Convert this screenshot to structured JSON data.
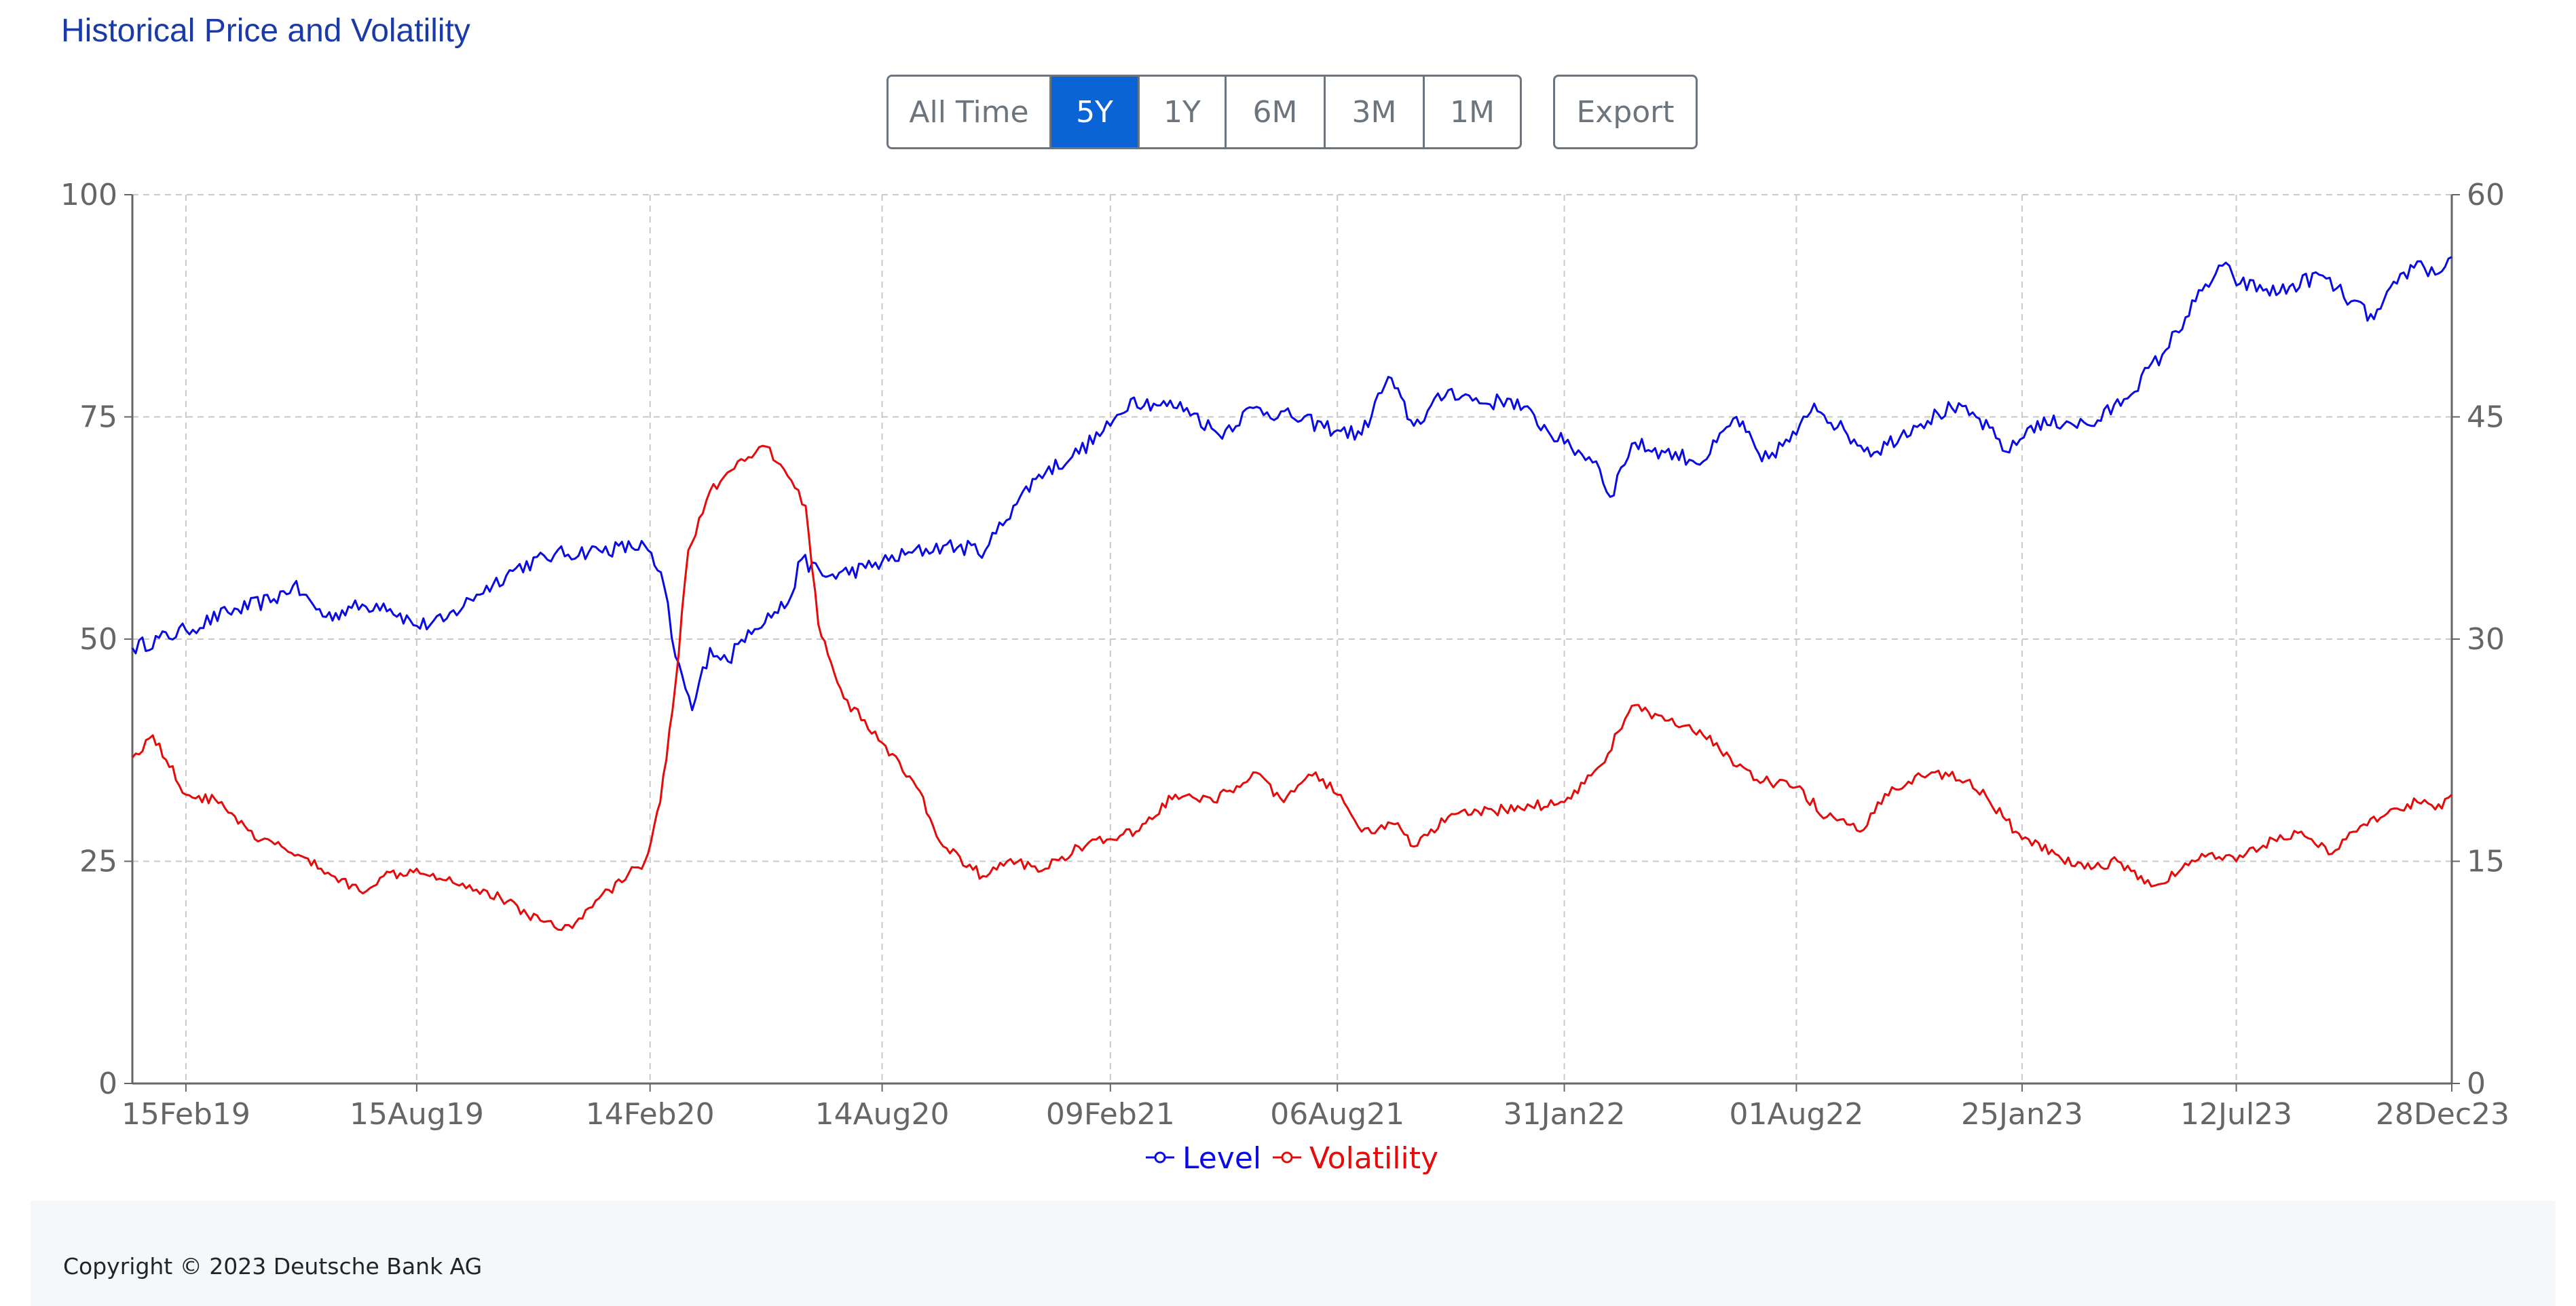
{
  "title": "Historical Price and Volatility",
  "range_buttons": [
    {
      "label": "All Time",
      "active": false
    },
    {
      "label": "5Y",
      "active": true
    },
    {
      "label": "1Y",
      "active": false
    },
    {
      "label": "6M",
      "active": false
    },
    {
      "label": "3M",
      "active": false
    },
    {
      "label": "1M",
      "active": false
    }
  ],
  "export_label": "Export",
  "footer": {
    "copyright": "Copyright © 2023 Deutsche Bank AG"
  },
  "colors": {
    "level": "#0a0ae6",
    "volatility": "#e60a0a",
    "active_button": "#0a64d6",
    "title": "#1a3aa8"
  },
  "chart_data": {
    "type": "line",
    "x_axis": {
      "type": "time",
      "start": "2019-01-04",
      "end": "2023-12-28",
      "tick_labels": [
        "15Feb19",
        "15Aug19",
        "14Feb20",
        "14Aug20",
        "09Feb21",
        "06Aug21",
        "31Jan22",
        "01Aug22",
        "25Jan23",
        "12Jul23",
        "28Dec23"
      ],
      "tick_dates": [
        "2019-02-15",
        "2019-08-15",
        "2020-02-14",
        "2020-08-14",
        "2021-02-09",
        "2021-08-06",
        "2022-01-31",
        "2022-08-01",
        "2023-01-25",
        "2023-07-12",
        "2023-12-28"
      ]
    },
    "y_left": {
      "min": 0,
      "max": 100,
      "ticks": [
        0,
        25,
        50,
        75,
        100
      ]
    },
    "y_right": {
      "min": 0,
      "max": 60,
      "ticks": [
        0,
        15,
        30,
        45,
        60
      ]
    },
    "grid": true,
    "legend_position": "bottom-center",
    "series": [
      {
        "name": "Level",
        "axis": "left",
        "color": "#0a0ae6",
        "points": [
          [
            "2019-01-04",
            49
          ],
          [
            "2019-02-15",
            51
          ],
          [
            "2019-03-20",
            53
          ],
          [
            "2019-04-25",
            54.5
          ],
          [
            "2019-05-10",
            56
          ],
          [
            "2019-06-05",
            52.5
          ],
          [
            "2019-06-25",
            53.5
          ],
          [
            "2019-07-20",
            54
          ],
          [
            "2019-08-15",
            51.5
          ],
          [
            "2019-09-05",
            52
          ],
          [
            "2019-10-01",
            55
          ],
          [
            "2019-11-01",
            58
          ],
          [
            "2019-12-01",
            59.5
          ],
          [
            "2020-01-05",
            60
          ],
          [
            "2020-02-10",
            60.5
          ],
          [
            "2020-02-25",
            56
          ],
          [
            "2020-03-05",
            48
          ],
          [
            "2020-03-18",
            42
          ],
          [
            "2020-04-01",
            49
          ],
          [
            "2020-04-15",
            47.5
          ],
          [
            "2020-05-01",
            51
          ],
          [
            "2020-06-01",
            54
          ],
          [
            "2020-06-12",
            59
          ],
          [
            "2020-07-01",
            57
          ],
          [
            "2020-08-01",
            58
          ],
          [
            "2020-09-01",
            59.5
          ],
          [
            "2020-10-01",
            60.5
          ],
          [
            "2020-11-03",
            60
          ],
          [
            "2020-11-25",
            65
          ],
          [
            "2020-12-15",
            68.5
          ],
          [
            "2021-01-10",
            70.5
          ],
          [
            "2021-02-09",
            74
          ],
          [
            "2021-02-25",
            77
          ],
          [
            "2021-03-15",
            76.5
          ],
          [
            "2021-04-10",
            76
          ],
          [
            "2021-05-05",
            73
          ],
          [
            "2021-06-01",
            76
          ],
          [
            "2021-07-01",
            75
          ],
          [
            "2021-08-06",
            73.5
          ],
          [
            "2021-08-25",
            73
          ],
          [
            "2021-09-15",
            79.5
          ],
          [
            "2021-10-05",
            74
          ],
          [
            "2021-11-01",
            78
          ],
          [
            "2021-12-01",
            76.5
          ],
          [
            "2021-12-20",
            77
          ],
          [
            "2022-01-31",
            72
          ],
          [
            "2022-02-25",
            70
          ],
          [
            "2022-03-08",
            66
          ],
          [
            "2022-03-25",
            72
          ],
          [
            "2022-04-20",
            71
          ],
          [
            "2022-05-20",
            70
          ],
          [
            "2022-06-15",
            75
          ],
          [
            "2022-07-05",
            70
          ],
          [
            "2022-08-01",
            73
          ],
          [
            "2022-08-15",
            76.5
          ],
          [
            "2022-09-10",
            73
          ],
          [
            "2022-10-01",
            71
          ],
          [
            "2022-11-01",
            74
          ],
          [
            "2022-12-01",
            76
          ],
          [
            "2022-12-20",
            75
          ],
          [
            "2023-01-15",
            71
          ],
          [
            "2023-02-01",
            74
          ],
          [
            "2023-03-01",
            74.5
          ],
          [
            "2023-03-20",
            74
          ],
          [
            "2023-04-15",
            77
          ],
          [
            "2023-05-15",
            82
          ],
          [
            "2023-06-10",
            88
          ],
          [
            "2023-07-01",
            92
          ],
          [
            "2023-07-15",
            90
          ],
          [
            "2023-08-15",
            89
          ],
          [
            "2023-09-15",
            91
          ],
          [
            "2023-10-10",
            88
          ],
          [
            "2023-10-28",
            86
          ],
          [
            "2023-11-15",
            90
          ],
          [
            "2023-12-01",
            92.5
          ],
          [
            "2023-12-15",
            91
          ],
          [
            "2023-12-28",
            93
          ]
        ]
      },
      {
        "name": "Volatility",
        "axis": "right",
        "color": "#e60a0a",
        "points": [
          [
            "2019-01-04",
            22
          ],
          [
            "2019-01-20",
            23.5
          ],
          [
            "2019-02-15",
            19.5
          ],
          [
            "2019-03-15",
            19
          ],
          [
            "2019-04-10",
            16.5
          ],
          [
            "2019-05-01",
            16
          ],
          [
            "2019-06-01",
            14.5
          ],
          [
            "2019-07-01",
            13
          ],
          [
            "2019-07-20",
            14
          ],
          [
            "2019-08-15",
            14.5
          ],
          [
            "2019-09-20",
            13.5
          ],
          [
            "2019-10-20",
            12.5
          ],
          [
            "2019-11-20",
            11
          ],
          [
            "2019-12-15",
            10.5
          ],
          [
            "2020-01-05",
            12.5
          ],
          [
            "2020-02-10",
            15
          ],
          [
            "2020-02-22",
            19
          ],
          [
            "2020-03-05",
            27
          ],
          [
            "2020-03-15",
            36
          ],
          [
            "2020-04-01",
            40
          ],
          [
            "2020-04-20",
            41.5
          ],
          [
            "2020-05-15",
            43
          ],
          [
            "2020-06-01",
            41
          ],
          [
            "2020-06-15",
            39
          ],
          [
            "2020-06-25",
            31
          ],
          [
            "2020-07-15",
            26
          ],
          [
            "2020-08-14",
            23
          ],
          [
            "2020-09-10",
            20
          ],
          [
            "2020-10-01",
            16
          ],
          [
            "2020-11-01",
            14
          ],
          [
            "2020-11-20",
            15
          ],
          [
            "2020-12-20",
            14.5
          ],
          [
            "2021-01-15",
            16
          ],
          [
            "2021-02-09",
            16.5
          ],
          [
            "2021-03-01",
            17
          ],
          [
            "2021-04-01",
            19.5
          ],
          [
            "2021-05-01",
            19
          ],
          [
            "2021-06-01",
            21
          ],
          [
            "2021-06-25",
            19
          ],
          [
            "2021-07-20",
            21
          ],
          [
            "2021-08-06",
            19.5
          ],
          [
            "2021-08-25",
            17
          ],
          [
            "2021-09-20",
            17.5
          ],
          [
            "2021-10-05",
            16
          ],
          [
            "2021-11-01",
            18
          ],
          [
            "2021-12-15",
            18.5
          ],
          [
            "2022-01-31",
            19
          ],
          [
            "2022-03-01",
            21.5
          ],
          [
            "2022-03-25",
            25.5
          ],
          [
            "2022-04-20",
            24.5
          ],
          [
            "2022-05-20",
            23.5
          ],
          [
            "2022-06-10",
            22
          ],
          [
            "2022-07-01",
            20.5
          ],
          [
            "2022-08-01",
            20
          ],
          [
            "2022-08-25",
            18
          ],
          [
            "2022-09-20",
            17
          ],
          [
            "2022-10-15",
            20
          ],
          [
            "2022-11-15",
            21
          ],
          [
            "2022-12-15",
            20.5
          ],
          [
            "2023-01-10",
            18
          ],
          [
            "2023-01-25",
            16.5
          ],
          [
            "2023-02-20",
            15.5
          ],
          [
            "2023-03-15",
            14.5
          ],
          [
            "2023-04-10",
            15
          ],
          [
            "2023-05-01",
            13.5
          ],
          [
            "2023-05-25",
            14
          ],
          [
            "2023-06-15",
            15.5
          ],
          [
            "2023-07-12",
            15
          ],
          [
            "2023-08-10",
            16.5
          ],
          [
            "2023-09-01",
            17
          ],
          [
            "2023-09-25",
            15.5
          ],
          [
            "2023-10-20",
            17.5
          ],
          [
            "2023-11-10",
            18.5
          ],
          [
            "2023-12-01",
            19
          ],
          [
            "2023-12-15",
            18.5
          ],
          [
            "2023-12-28",
            19.5
          ]
        ]
      }
    ]
  }
}
